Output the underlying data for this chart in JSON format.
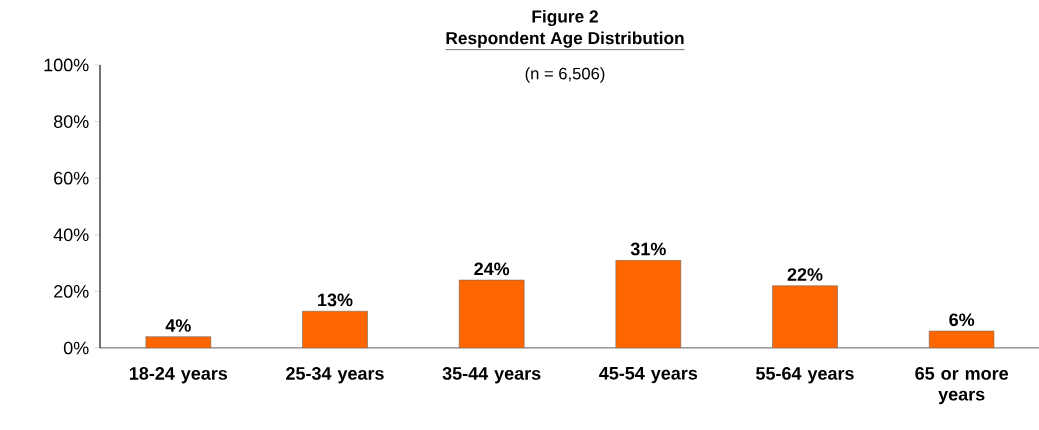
{
  "chart_data": {
    "type": "bar",
    "title": "Figure 2",
    "subtitle": "Respondent Age Distribution",
    "annotations": [
      "(n = 6,506)"
    ],
    "categories": [
      "18-24 years",
      "25-34 years",
      "35-44 years",
      "45-54 years",
      "55-64 years",
      "65 or more years"
    ],
    "values": [
      4,
      13,
      24,
      31,
      22,
      6
    ],
    "value_labels": [
      "4%",
      "13%",
      "24%",
      "31%",
      "22%",
      "6%"
    ],
    "color": "#ff6600",
    "ylim": [
      0,
      100
    ],
    "yticks": [
      {
        "value": 0,
        "label": "0%"
      },
      {
        "value": 20,
        "label": "20%"
      },
      {
        "value": 40,
        "label": "40%"
      },
      {
        "value": 60,
        "label": "60%"
      },
      {
        "value": 80,
        "label": "80%"
      },
      {
        "value": 100,
        "label": "100%"
      }
    ],
    "grid": false
  }
}
